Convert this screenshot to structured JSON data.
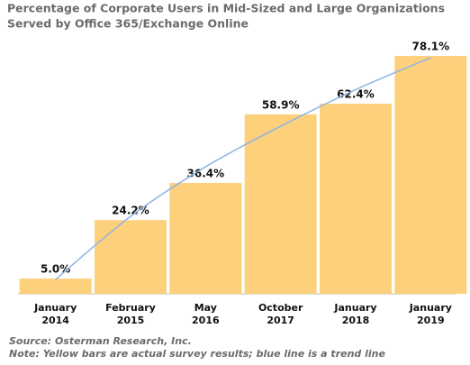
{
  "chart_data": {
    "type": "bar",
    "title": [
      "Percentage of Corporate Users in Mid-Sized and Large Organizations",
      "Served by Office 365/Exchange Online"
    ],
    "categories": [
      [
        "January",
        "2014"
      ],
      [
        "February",
        "2015"
      ],
      [
        "May",
        "2016"
      ],
      [
        "October",
        "2017"
      ],
      [
        "January",
        "2018"
      ],
      [
        "January",
        "2019"
      ]
    ],
    "series": [
      {
        "type": "bar",
        "color": "#fdd07b",
        "values": [
          5.0,
          24.2,
          36.4,
          58.9,
          62.4,
          78.1
        ],
        "value_labels": [
          "5.0%",
          "24.2%",
          "36.4%",
          "58.9%",
          "62.4%",
          "78.1%"
        ]
      },
      {
        "type": "line",
        "color": "#8fb3e8",
        "values": [
          4.7,
          25.4,
          41.7,
          55.0,
          67.0,
          77.5
        ]
      }
    ],
    "notes": [
      "Source: Osterman Research, Inc.",
      "Note: Yellow bars are actual survey results; blue line is a trend line"
    ]
  }
}
